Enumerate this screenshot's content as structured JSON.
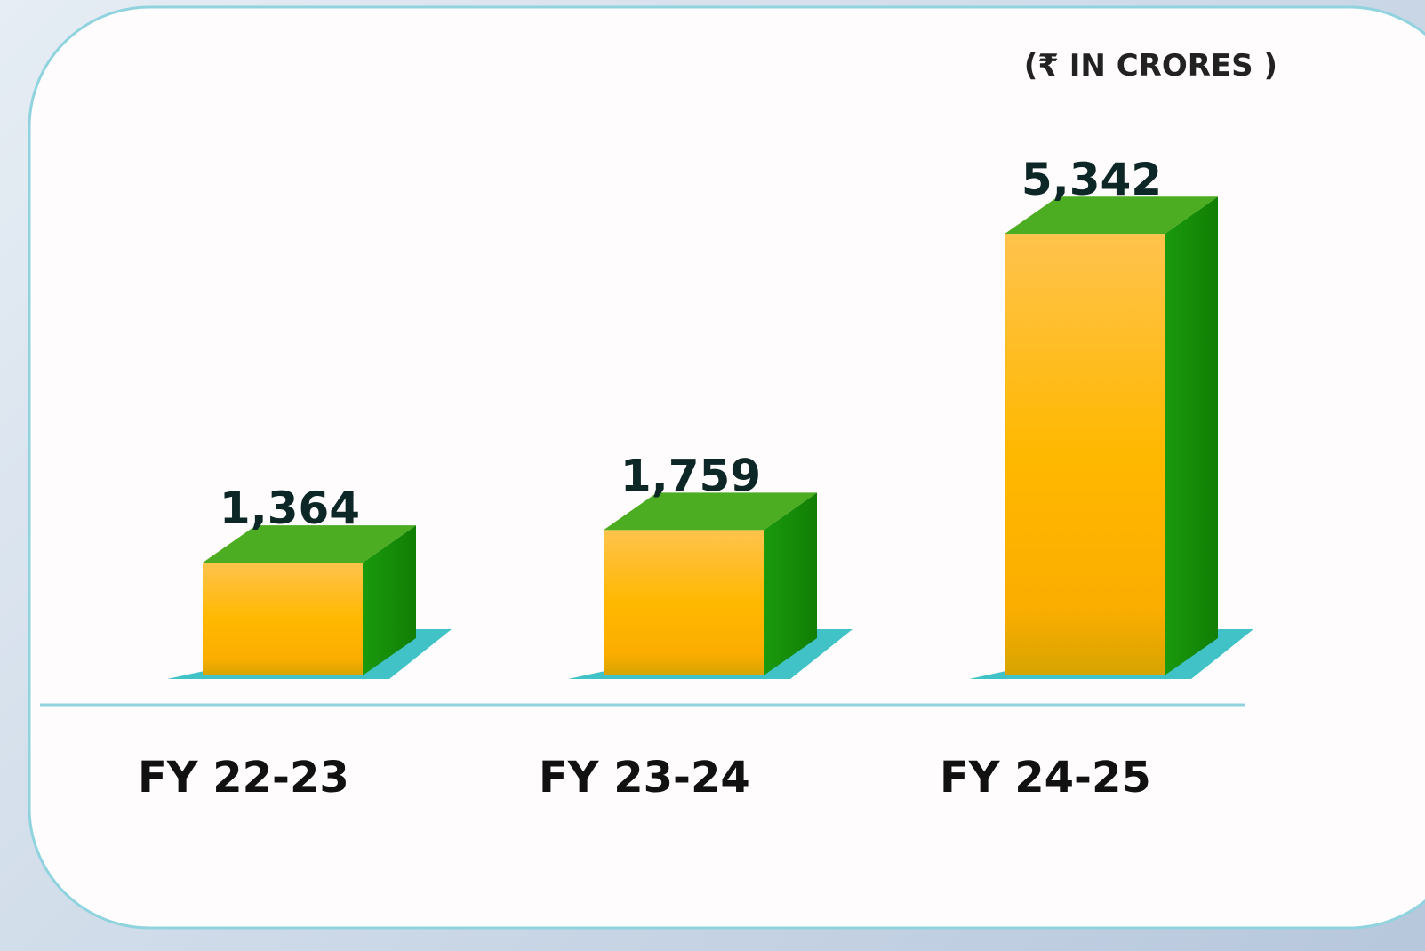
{
  "chart_data": {
    "type": "bar3d",
    "unit_label": "(₹ IN CRORES )",
    "categories": [
      "FY 22-23",
      "FY 23-24",
      "FY 24-25"
    ],
    "values": [
      1364,
      1759,
      5342
    ],
    "value_labels": [
      "1,364",
      "1,759",
      "5,342"
    ],
    "color": "#ffb800",
    "top_color": "#4cad22",
    "side_color": "#168f08"
  }
}
